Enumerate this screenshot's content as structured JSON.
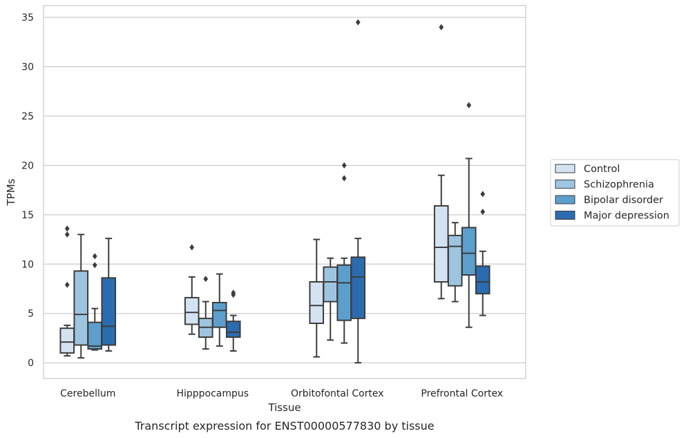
{
  "chart_data": {
    "type": "box",
    "title": "",
    "caption": "Transcript expression for ENST00000577830 by tissue",
    "xlabel": "Tissue",
    "ylabel": "TPMs",
    "ylim": [
      -1.6,
      36.2
    ],
    "yticks": [
      0,
      5,
      10,
      15,
      20,
      25,
      30,
      35
    ],
    "grid": "horizontal",
    "legend_position": "right",
    "categories": [
      "Cerebellum",
      "Hipppocampus",
      "Orbitofontal Cortex",
      "Prefrontal Cortex"
    ],
    "series": [
      {
        "name": "Control",
        "color": "#d4e3f2",
        "boxes": [
          {
            "whislo": 0.7,
            "q1": 1.0,
            "med": 2.1,
            "q3": 3.5,
            "whishi": 3.8,
            "fliers": [
              7.9,
              13.0,
              13.6
            ]
          },
          {
            "whislo": 2.9,
            "q1": 3.9,
            "med": 5.1,
            "q3": 6.6,
            "whishi": 8.7,
            "fliers": [
              11.7
            ]
          },
          {
            "whislo": 0.6,
            "q1": 4.0,
            "med": 5.8,
            "q3": 8.2,
            "whishi": 12.5,
            "fliers": []
          },
          {
            "whislo": 6.5,
            "q1": 8.2,
            "med": 11.7,
            "q3": 15.9,
            "whishi": 19.0,
            "fliers": [
              34.0
            ]
          }
        ]
      },
      {
        "name": "Schizophrenia",
        "color": "#9ec5e0",
        "boxes": [
          {
            "whislo": 0.5,
            "q1": 1.8,
            "med": 4.9,
            "q3": 9.3,
            "whishi": 13.0,
            "fliers": []
          },
          {
            "whislo": 1.4,
            "q1": 2.6,
            "med": 3.6,
            "q3": 4.5,
            "whishi": 6.2,
            "fliers": [
              8.5
            ]
          },
          {
            "whislo": 2.3,
            "q1": 6.2,
            "med": 8.2,
            "q3": 9.7,
            "whishi": 10.6,
            "fliers": []
          },
          {
            "whislo": 6.2,
            "q1": 7.8,
            "med": 11.8,
            "q3": 12.9,
            "whishi": 14.2,
            "fliers": []
          }
        ]
      },
      {
        "name": "Bipolar disorder",
        "color": "#5c9fcd",
        "boxes": [
          {
            "whislo": 1.3,
            "q1": 1.4,
            "med": 1.7,
            "q3": 4.1,
            "whishi": 5.5,
            "fliers": [
              9.9,
              10.8
            ]
          },
          {
            "whislo": 1.7,
            "q1": 3.6,
            "med": 5.3,
            "q3": 6.1,
            "whishi": 9.0,
            "fliers": []
          },
          {
            "whislo": 2.0,
            "q1": 4.3,
            "med": 8.1,
            "q3": 9.9,
            "whishi": 10.6,
            "fliers": [
              18.7,
              20.0
            ]
          },
          {
            "whislo": 3.6,
            "q1": 8.9,
            "med": 11.1,
            "q3": 13.7,
            "whishi": 20.7,
            "fliers": [
              26.1
            ]
          }
        ]
      },
      {
        "name": "Major depression",
        "color": "#2b6cb0",
        "boxes": [
          {
            "whislo": 1.2,
            "q1": 1.8,
            "med": 3.7,
            "q3": 8.6,
            "whishi": 12.6,
            "fliers": []
          },
          {
            "whislo": 1.2,
            "q1": 2.6,
            "med": 3.1,
            "q3": 4.2,
            "whishi": 4.8,
            "fliers": [
              6.9,
              7.1
            ]
          },
          {
            "whislo": 0.0,
            "q1": 4.5,
            "med": 8.7,
            "q3": 10.7,
            "whishi": 12.6,
            "fliers": [
              34.5
            ]
          },
          {
            "whislo": 4.8,
            "q1": 7.0,
            "med": 8.2,
            "q3": 9.8,
            "whishi": 11.3,
            "fliers": [
              15.3,
              17.1
            ]
          }
        ]
      }
    ]
  }
}
